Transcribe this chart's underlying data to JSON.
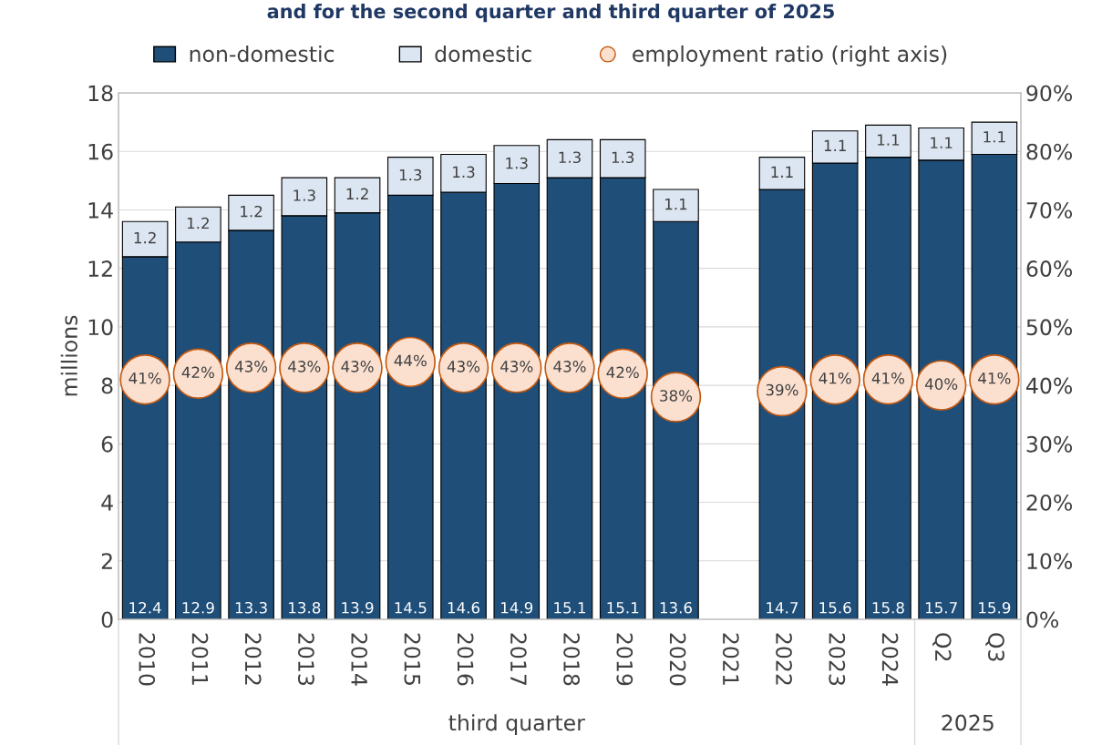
{
  "chart_data": {
    "type": "bar",
    "stacked": true,
    "title": "and for the second quarter and third quarter of 2025",
    "ylabel": "millions",
    "categories": [
      "2010",
      "2011",
      "2012",
      "2013",
      "2014",
      "2015",
      "2016",
      "2017",
      "2018",
      "2019",
      "2020",
      "2021",
      "2022",
      "2023",
      "2024",
      "Q2",
      "Q3"
    ],
    "series": [
      {
        "name": "non-domestic",
        "color": "#1f4e79",
        "values": [
          12.4,
          12.9,
          13.3,
          13.8,
          13.9,
          14.5,
          14.6,
          14.9,
          15.1,
          15.1,
          13.6,
          null,
          14.7,
          15.6,
          15.8,
          15.7,
          15.9
        ]
      },
      {
        "name": "domestic",
        "color": "#dce6f2",
        "values": [
          1.2,
          1.2,
          1.2,
          1.3,
          1.2,
          1.3,
          1.3,
          1.3,
          1.3,
          1.3,
          1.1,
          null,
          1.1,
          1.1,
          1.1,
          1.1,
          1.1
        ]
      },
      {
        "name": "employment ratio (right axis)",
        "type": "scatter",
        "axis": "y2",
        "color": "#fbe0d0",
        "values": [
          41,
          42,
          43,
          43,
          43,
          44,
          43,
          43,
          43,
          42,
          38,
          null,
          39,
          41,
          41,
          40,
          41
        ],
        "value_labels": [
          "41%",
          "42%",
          "43%",
          "43%",
          "43%",
          "44%",
          "43%",
          "43%",
          "43%",
          "42%",
          "38%",
          null,
          "39%",
          "41%",
          "41%",
          "40%",
          "41%"
        ]
      }
    ],
    "data_labels": true,
    "ylim": [
      0,
      18
    ],
    "yticks": [
      0,
      2,
      4,
      6,
      8,
      10,
      12,
      14,
      16,
      18
    ],
    "y2lim": [
      0,
      90
    ],
    "y2ticks": [
      {
        "value": 0,
        "label": "0%"
      },
      {
        "value": 10,
        "label": "10%"
      },
      {
        "value": 20,
        "label": "20%"
      },
      {
        "value": 30,
        "label": "30%"
      },
      {
        "value": 40,
        "label": "40%"
      },
      {
        "value": 50,
        "label": "50%"
      },
      {
        "value": 60,
        "label": "60%"
      },
      {
        "value": 70,
        "label": "70%"
      },
      {
        "value": 80,
        "label": "80%"
      },
      {
        "value": 90,
        "label": "90%"
      }
    ],
    "grid": "y",
    "legend": "top",
    "marker": "circle",
    "annotations": [
      "third quarter",
      "2025"
    ]
  }
}
